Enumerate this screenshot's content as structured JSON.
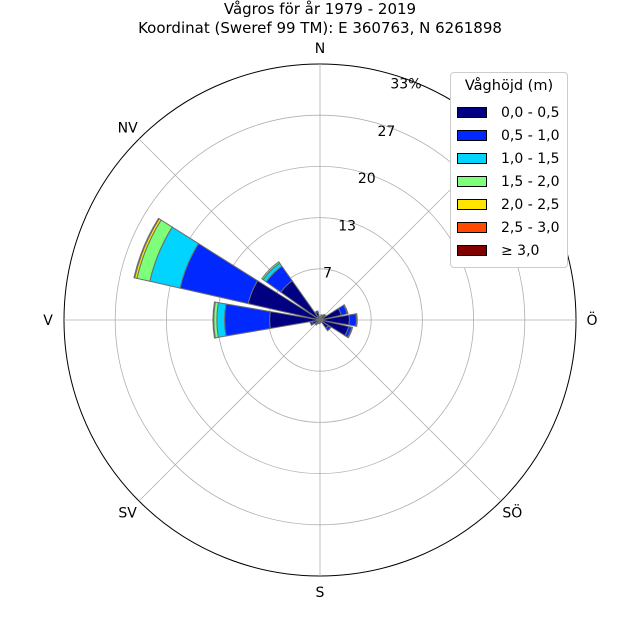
{
  "title": {
    "line1": "Vågros för år 1979 - 2019",
    "line2": "Koordinat (Sweref 99 TM): E 360763, N 6261898"
  },
  "legend": {
    "title": "Våghöjd (m)",
    "items": [
      {
        "label": "0,0 - 0,5",
        "color": "#000080"
      },
      {
        "label": "0,5 - 1,0",
        "color": "#0028ff"
      },
      {
        "label": "1,0 - 1,5",
        "color": "#00d4ff"
      },
      {
        "label": "1,5 - 2,0",
        "color": "#7dff7a"
      },
      {
        "label": "2,0 - 2,5",
        "color": "#ffe500"
      },
      {
        "label": "2,5 - 3,0",
        "color": "#ff4a00"
      },
      {
        "label": "≥ 3,0",
        "color": "#800000"
      }
    ]
  },
  "chart_data": {
    "type": "windrose",
    "title": "Vågros för år 1979 - 2019",
    "subtitle": "Koordinat (Sweref 99 TM): E 360763, N 6261898",
    "radial_unit": "%",
    "rmax": 33,
    "radial_ticks": [
      {
        "value": 6.6,
        "label": "7"
      },
      {
        "value": 13.2,
        "label": "13"
      },
      {
        "value": 19.8,
        "label": "20"
      },
      {
        "value": 26.4,
        "label": "27"
      },
      {
        "value": 33,
        "label": "33%"
      }
    ],
    "direction_labels": [
      {
        "angle": 0,
        "label": "N"
      },
      {
        "angle": 45,
        "label": ""
      },
      {
        "angle": 90,
        "label": "Ö"
      },
      {
        "angle": 135,
        "label": "SÖ"
      },
      {
        "angle": 180,
        "label": "S"
      },
      {
        "angle": 225,
        "label": "SV"
      },
      {
        "angle": 270,
        "label": "V"
      },
      {
        "angle": 315,
        "label": "NV"
      }
    ],
    "bins": [
      "0,0 - 0,5",
      "0,5 - 1,0",
      "1,0 - 1,5",
      "1,5 - 2,0",
      "2,0 - 2,5",
      "2,5 - 3,0",
      "≥ 3,0"
    ],
    "sectors": [
      {
        "direction": 0,
        "values": [
          0.3,
          0.1,
          0,
          0,
          0,
          0,
          0
        ]
      },
      {
        "direction": 22.5,
        "values": [
          0.5,
          0.2,
          0,
          0,
          0,
          0,
          0
        ]
      },
      {
        "direction": 45,
        "values": [
          0.7,
          0.2,
          0,
          0,
          0,
          0,
          0
        ]
      },
      {
        "direction": 67.5,
        "values": [
          2.8,
          0.8,
          0.1,
          0,
          0,
          0,
          0
        ]
      },
      {
        "direction": 90,
        "values": [
          3.8,
          0.9,
          0.1,
          0,
          0,
          0,
          0
        ]
      },
      {
        "direction": 112.5,
        "values": [
          3.8,
          0.4,
          0.1,
          0,
          0,
          0,
          0
        ]
      },
      {
        "direction": 135,
        "values": [
          1.3,
          0.4,
          0,
          0,
          0,
          0,
          0
        ]
      },
      {
        "direction": 157.5,
        "values": [
          0.2,
          0.1,
          0,
          0,
          0,
          0,
          0
        ]
      },
      {
        "direction": 180,
        "values": [
          0.3,
          0.1,
          0,
          0,
          0,
          0,
          0
        ]
      },
      {
        "direction": 202.5,
        "values": [
          0.4,
          0.1,
          0,
          0,
          0,
          0,
          0
        ]
      },
      {
        "direction": 225,
        "values": [
          0.6,
          0.2,
          0,
          0,
          0,
          0,
          0
        ]
      },
      {
        "direction": 247.5,
        "values": [
          1.0,
          0.3,
          0,
          0,
          0,
          0,
          0
        ]
      },
      {
        "direction": 270,
        "values": [
          6.5,
          5.8,
          1.0,
          0.4,
          0.1,
          0,
          0
        ]
      },
      {
        "direction": 292.5,
        "values": [
          9.5,
          9.0,
          4.0,
          1.7,
          0.3,
          0.1,
          0
        ]
      },
      {
        "direction": 315,
        "values": [
          6.2,
          2.3,
          0.5,
          0.2,
          0,
          0,
          0
        ]
      },
      {
        "direction": 337.5,
        "values": [
          1.0,
          0.2,
          0,
          0,
          0,
          0,
          0
        ]
      }
    ]
  }
}
